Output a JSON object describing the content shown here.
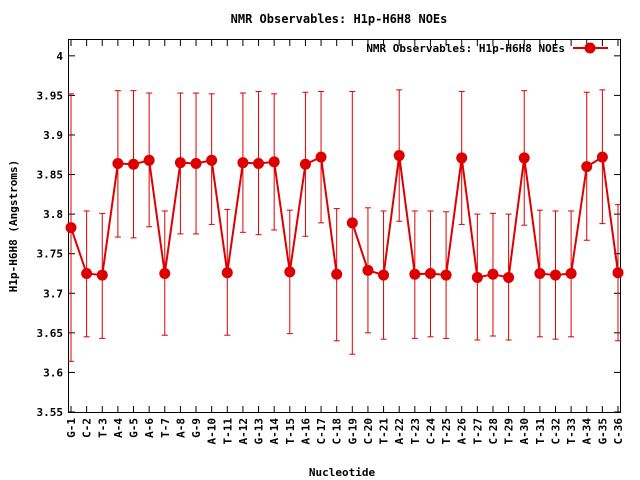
{
  "chart_data": {
    "type": "line",
    "title": "NMR Observables: H1p-H6H8 NOEs",
    "xlabel": "Nucleotide",
    "ylabel": "H1p-H6H8 (Angstroms)",
    "ylim": [
      3.55,
      4.02
    ],
    "yticks": [
      "3.55",
      "3.6",
      "3.65",
      "3.7",
      "3.75",
      "3.8",
      "3.85",
      "3.9",
      "3.95",
      "4"
    ],
    "legend_position": "top-right",
    "grid": false,
    "categories": [
      "G-1",
      "C-2",
      "T-3",
      "A-4",
      "G-5",
      "A-6",
      "T-7",
      "A-8",
      "G-9",
      "A-10",
      "T-11",
      "A-12",
      "G-13",
      "A-14",
      "T-15",
      "A-16",
      "C-17",
      "C-18",
      "G-19",
      "C-20",
      "T-21",
      "A-22",
      "T-23",
      "C-24",
      "T-25",
      "A-26",
      "T-27",
      "C-28",
      "T-29",
      "A-30",
      "T-31",
      "C-32",
      "T-33",
      "A-34",
      "G-35",
      "C-36"
    ],
    "series": [
      {
        "name": "NMR Observables: H1p-H6H8 NOEs",
        "color": "#dd0000",
        "segments": [
          [
            0,
            17
          ],
          [
            18,
            35
          ]
        ],
        "values": [
          3.783,
          3.725,
          3.723,
          3.864,
          3.863,
          3.868,
          3.725,
          3.865,
          3.864,
          3.868,
          3.726,
          3.865,
          3.864,
          3.866,
          3.727,
          3.863,
          3.872,
          3.724,
          3.789,
          3.729,
          3.723,
          3.874,
          3.724,
          3.725,
          3.723,
          3.871,
          3.72,
          3.724,
          3.72,
          3.871,
          3.725,
          3.723,
          3.725,
          3.86,
          3.872,
          3.726
        ],
        "err_low": [
          3.614,
          3.645,
          3.643,
          3.771,
          3.77,
          3.784,
          3.647,
          3.775,
          3.775,
          3.787,
          3.647,
          3.777,
          3.774,
          3.78,
          3.649,
          3.772,
          3.789,
          3.64,
          3.623,
          3.65,
          3.642,
          3.791,
          3.643,
          3.645,
          3.643,
          3.787,
          3.641,
          3.646,
          3.641,
          3.786,
          3.645,
          3.642,
          3.645,
          3.767,
          3.788,
          3.64
        ],
        "err_high": [
          3.952,
          3.804,
          3.801,
          3.956,
          3.956,
          3.953,
          3.804,
          3.953,
          3.953,
          3.952,
          3.806,
          3.953,
          3.955,
          3.952,
          3.805,
          3.954,
          3.955,
          3.807,
          3.955,
          3.808,
          3.804,
          3.957,
          3.804,
          3.804,
          3.803,
          3.955,
          3.8,
          3.801,
          3.8,
          3.956,
          3.805,
          3.804,
          3.804,
          3.954,
          3.957,
          3.812
        ]
      }
    ]
  }
}
